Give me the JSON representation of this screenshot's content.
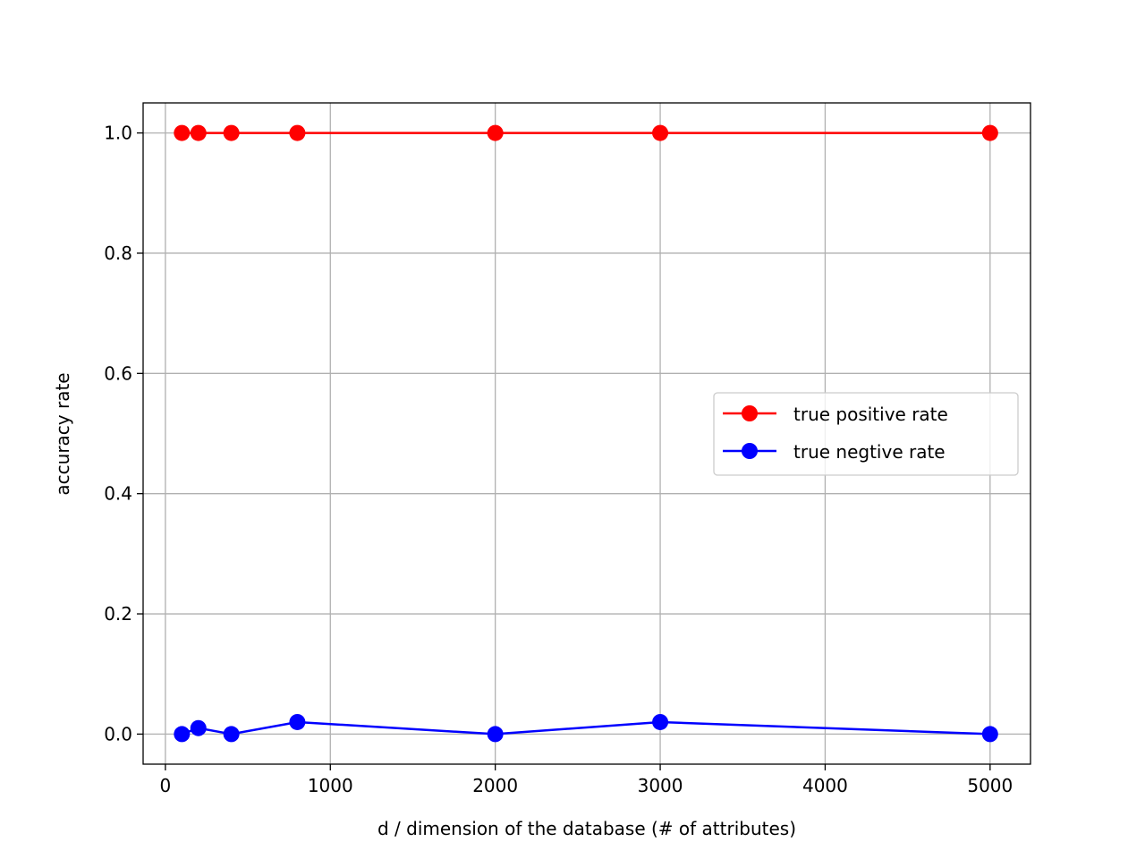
{
  "chart_data": {
    "type": "line",
    "xlabel": "d / dimension of the database (# of attributes)",
    "ylabel": "accuracy rate",
    "xlim": [
      -135,
      5245
    ],
    "ylim": [
      -0.05,
      1.05
    ],
    "grid": true,
    "legend_position": "center-right",
    "x_ticks": [
      0,
      1000,
      2000,
      3000,
      4000,
      5000
    ],
    "x_tick_labels": [
      "0",
      "1000",
      "2000",
      "3000",
      "4000",
      "5000"
    ],
    "y_ticks": [
      0.0,
      0.2,
      0.4,
      0.6,
      0.8,
      1.0
    ],
    "y_tick_labels": [
      "0.0",
      "0.2",
      "0.4",
      "0.6",
      "0.8",
      "1.0"
    ],
    "x": [
      100,
      200,
      400,
      800,
      2000,
      3000,
      5000
    ],
    "series": [
      {
        "name": "true positive rate",
        "color": "#ff0000",
        "values": [
          1.0,
          1.0,
          1.0,
          1.0,
          1.0,
          1.0,
          1.0
        ]
      },
      {
        "name": "true negtive rate",
        "color": "#0000ff",
        "values": [
          0.0,
          0.01,
          0.0,
          0.02,
          0.0,
          0.02,
          0.0
        ]
      }
    ]
  }
}
